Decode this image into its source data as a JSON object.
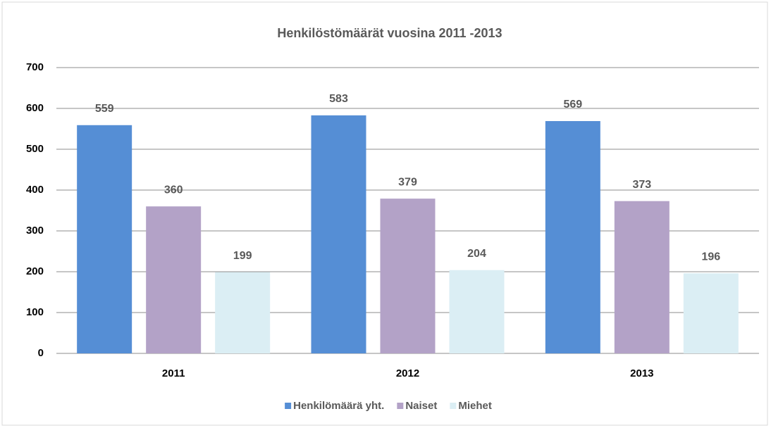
{
  "chart_data": {
    "type": "bar",
    "title": "Henkilöstömäärät  vuosina  2011 -2013",
    "categories": [
      "2011",
      "2012",
      "2013"
    ],
    "series": [
      {
        "name": "Henkilömäärä yht.",
        "color": "#558ed5",
        "values": [
          559,
          583,
          569
        ]
      },
      {
        "name": "Naiset",
        "color": "#b3a2c7",
        "values": [
          360,
          379,
          373
        ]
      },
      {
        "name": "Miehet",
        "color": "#dbeef4",
        "values": [
          199,
          204,
          196
        ]
      }
    ],
    "ylim": [
      0,
      700
    ],
    "yticks": [
      0,
      100,
      200,
      300,
      400,
      500,
      600,
      700
    ],
    "grid": true,
    "legend": "bottom"
  }
}
